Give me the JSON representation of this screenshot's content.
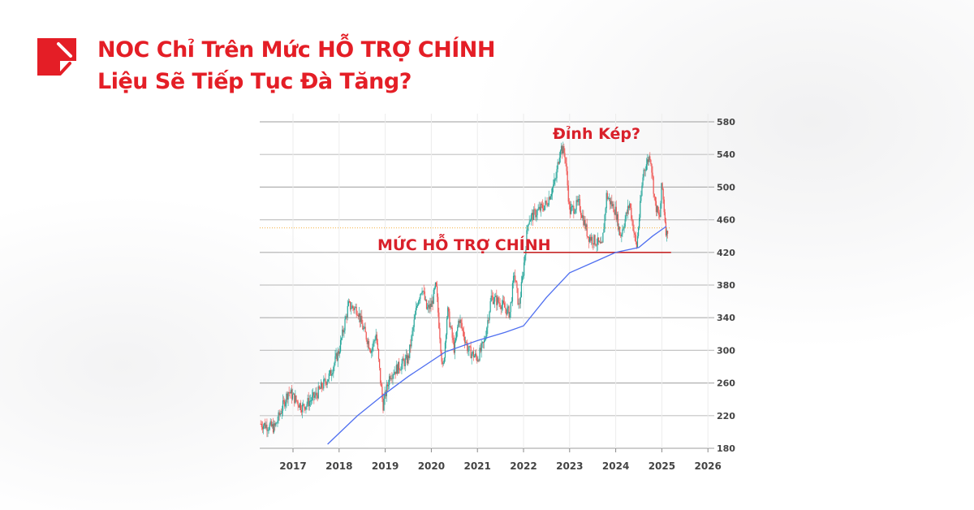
{
  "header": {
    "title_line1": "NOC Chỉ Trên Mức HỖ TRỢ CHÍNH",
    "title_line2": "Liệu Sẽ Tiếp Tục Đà Tăng?",
    "logo_icon": "red-square-slash-logo"
  },
  "colors": {
    "brand": "#e41e26",
    "up": "#26a69a",
    "down": "#ef5350",
    "ma": "#4f6ff0",
    "support": "#c62828",
    "last_price": "#f5b041"
  },
  "chart_data": {
    "type": "candlestick",
    "title": "",
    "xlim": [
      2016.3,
      2026
    ],
    "ylim": [
      180,
      580
    ],
    "x_ticks": [
      "2017",
      "2018",
      "2019",
      "2020",
      "2021",
      "2022",
      "2023",
      "2024",
      "2025",
      "2026"
    ],
    "y_ticks": [
      180,
      220,
      260,
      300,
      340,
      380,
      420,
      460,
      500,
      540,
      580
    ],
    "grid": true,
    "price_path": [
      [
        2016.3,
        210
      ],
      [
        2016.6,
        205
      ],
      [
        2016.9,
        250
      ],
      [
        2017.2,
        230
      ],
      [
        2017.5,
        245
      ],
      [
        2017.8,
        270
      ],
      [
        2018.0,
        300
      ],
      [
        2018.2,
        355
      ],
      [
        2018.4,
        350
      ],
      [
        2018.5,
        330
      ],
      [
        2018.7,
        300
      ],
      [
        2018.8,
        320
      ],
      [
        2018.95,
        232
      ],
      [
        2019.1,
        270
      ],
      [
        2019.3,
        280
      ],
      [
        2019.5,
        290
      ],
      [
        2019.7,
        360
      ],
      [
        2019.8,
        378
      ],
      [
        2019.9,
        350
      ],
      [
        2020.0,
        355
      ],
      [
        2020.1,
        380
      ],
      [
        2020.25,
        272
      ],
      [
        2020.35,
        350
      ],
      [
        2020.5,
        300
      ],
      [
        2020.6,
        340
      ],
      [
        2020.8,
        300
      ],
      [
        2021.0,
        290
      ],
      [
        2021.15,
        310
      ],
      [
        2021.3,
        365
      ],
      [
        2021.5,
        358
      ],
      [
        2021.7,
        345
      ],
      [
        2021.8,
        395
      ],
      [
        2021.9,
        352
      ],
      [
        2022.0,
        400
      ],
      [
        2022.1,
        460
      ],
      [
        2022.3,
        470
      ],
      [
        2022.5,
        480
      ],
      [
        2022.7,
        510
      ],
      [
        2022.8,
        550
      ],
      [
        2022.9,
        540
      ],
      [
        2023.0,
        470
      ],
      [
        2023.2,
        480
      ],
      [
        2023.4,
        440
      ],
      [
        2023.6,
        432
      ],
      [
        2023.7,
        425
      ],
      [
        2023.8,
        490
      ],
      [
        2024.0,
        470
      ],
      [
        2024.1,
        440
      ],
      [
        2024.3,
        480
      ],
      [
        2024.45,
        425
      ],
      [
        2024.6,
        520
      ],
      [
        2024.75,
        540
      ],
      [
        2024.85,
        480
      ],
      [
        2024.95,
        460
      ],
      [
        2025.0,
        505
      ],
      [
        2025.1,
        440
      ],
      [
        2025.13,
        450
      ]
    ],
    "moving_average": [
      [
        2017.75,
        185
      ],
      [
        2018.4,
        220
      ],
      [
        2018.95,
        245
      ],
      [
        2019.5,
        268
      ],
      [
        2020.3,
        298
      ],
      [
        2021.0,
        312
      ],
      [
        2021.6,
        322
      ],
      [
        2022.0,
        330
      ],
      [
        2022.5,
        365
      ],
      [
        2023.0,
        395
      ],
      [
        2023.6,
        410
      ],
      [
        2024.0,
        420
      ],
      [
        2024.5,
        426
      ],
      [
        2024.8,
        440
      ],
      [
        2025.1,
        452
      ]
    ],
    "support_level": 420,
    "last_price_level": 450,
    "annotations": {
      "support_label": "MỨC HỖ TRỢ CHÍNH",
      "peak_label": "Đỉnh Kép?"
    }
  }
}
